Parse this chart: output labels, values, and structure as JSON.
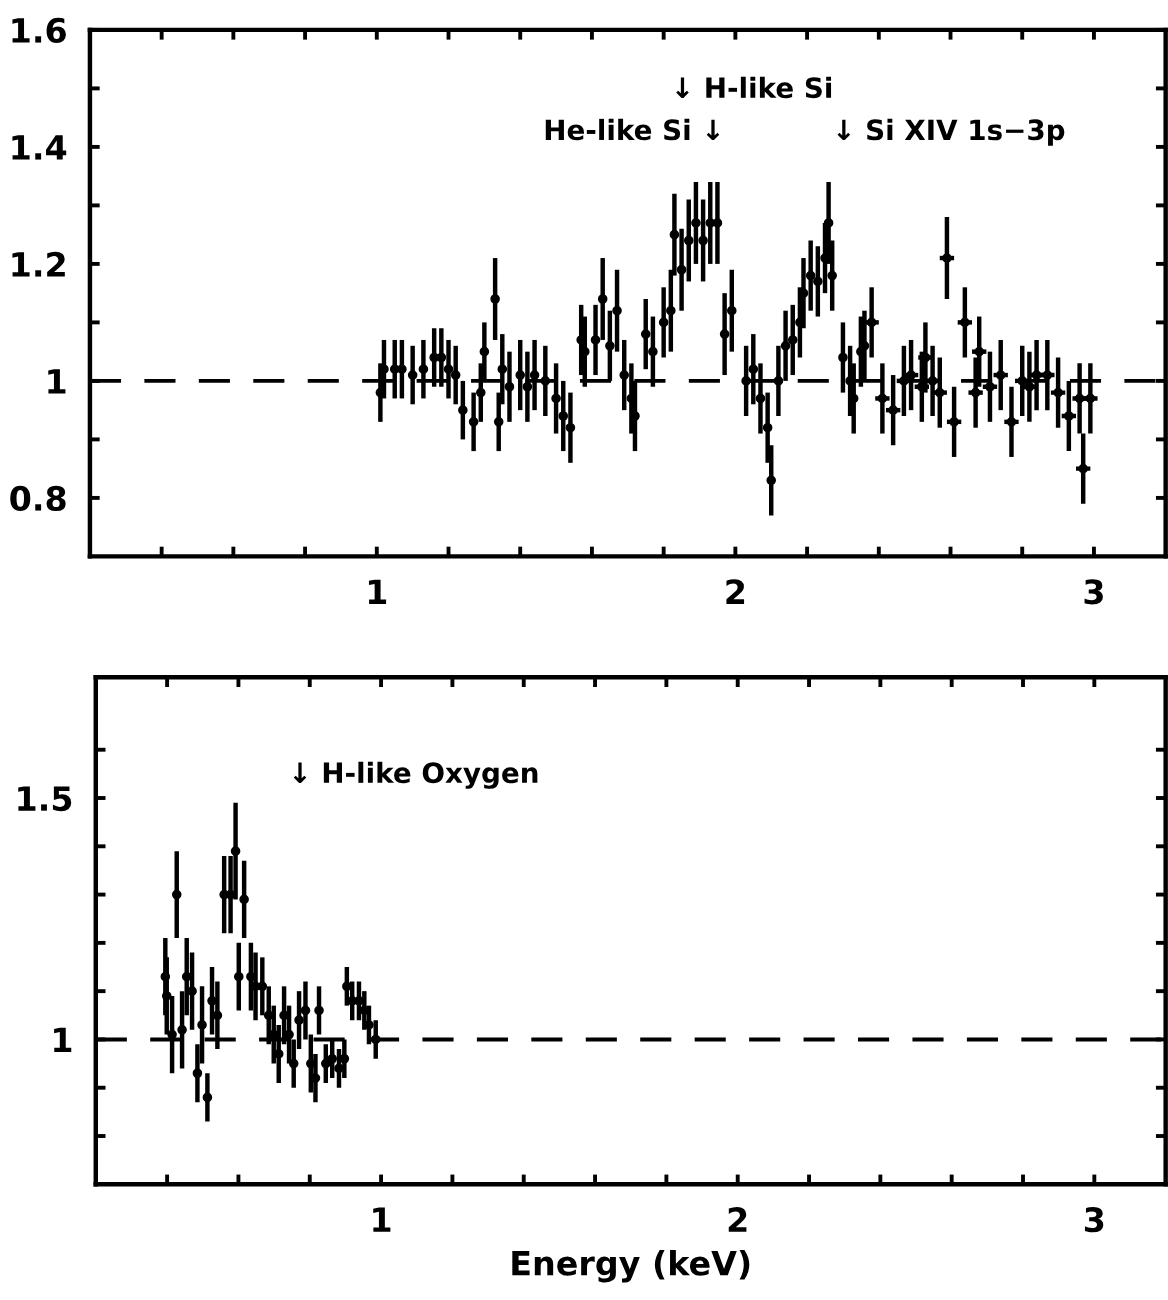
{
  "chart_data": [
    {
      "type": "scatter",
      "marker": "circle",
      "grid": false,
      "xlim": [
        0.2,
        3.2
      ],
      "ylim": [
        0.7,
        1.6
      ],
      "xticks": [
        {
          "value": 0.4,
          "label": null
        },
        {
          "value": 0.6,
          "label": null
        },
        {
          "value": 0.8,
          "label": null
        },
        1,
        {
          "value": 1.2,
          "label": null
        },
        {
          "value": 1.4,
          "label": null
        },
        {
          "value": 1.6,
          "label": null
        },
        {
          "value": 1.8,
          "label": null
        },
        2,
        {
          "value": 2.2,
          "label": null
        },
        {
          "value": 2.4,
          "label": null
        },
        {
          "value": 2.6,
          "label": null
        },
        {
          "value": 2.8,
          "label": null
        },
        3
      ],
      "yticks": [
        0.8,
        {
          "value": 0.9,
          "label": null
        },
        1,
        {
          "value": 1.1,
          "label": null
        },
        1.2,
        {
          "value": 1.3,
          "label": null
        },
        1.4,
        {
          "value": 1.5,
          "label": null
        },
        1.6
      ],
      "ref_lines": [
        {
          "axis": "y",
          "value": 1,
          "line_style": "dashed",
          "color": "#000000"
        }
      ],
      "annotations": [
        "He-like Si ↓",
        "↓ H-like Si",
        "↓ Si XIV 1s−3p"
      ],
      "series": [
        {
          "color": "#000000",
          "x": [
            1.01,
            1.02,
            1.05,
            1.07,
            1.1,
            1.13,
            1.16,
            1.18,
            1.2,
            1.22,
            1.24,
            1.27,
            1.29,
            1.3,
            1.33,
            1.34,
            1.35,
            1.37,
            1.4,
            1.42,
            1.44,
            1.47,
            1.5,
            1.52,
            1.54,
            1.57,
            1.58,
            1.61,
            1.63,
            1.65,
            1.67,
            1.69,
            1.71,
            1.72,
            1.75,
            1.77,
            1.8,
            1.82,
            1.83,
            1.85,
            1.87,
            1.89,
            1.91,
            1.93,
            1.95,
            1.97,
            1.99,
            2.03,
            2.05,
            2.07,
            2.09,
            2.1,
            2.12,
            2.14,
            2.16,
            2.18,
            2.19,
            2.21,
            2.23,
            2.25,
            2.26,
            2.27,
            2.3,
            2.32,
            2.33,
            2.35,
            2.36,
            2.38,
            2.41,
            2.44,
            2.47,
            2.49,
            2.52,
            2.53,
            2.55,
            2.57,
            2.59,
            2.61,
            2.64,
            2.67,
            2.68,
            2.71,
            2.74,
            2.77,
            2.8,
            2.82,
            2.84,
            2.87,
            2.9,
            2.93,
            2.96,
            2.97,
            2.99
          ],
          "values": [
            0.98,
            1.02,
            1.02,
            1.02,
            1.01,
            1.02,
            1.04,
            1.04,
            1.02,
            1.01,
            0.95,
            0.93,
            0.98,
            1.05,
            1.14,
            0.93,
            1.02,
            0.99,
            1.01,
            0.99,
            1.01,
            1.0,
            0.97,
            0.94,
            0.92,
            1.07,
            1.05,
            1.07,
            1.14,
            1.06,
            1.12,
            1.01,
            0.97,
            0.94,
            1.08,
            1.05,
            1.1,
            1.12,
            1.25,
            1.19,
            1.24,
            1.27,
            1.24,
            1.27,
            1.27,
            1.08,
            1.12,
            1.0,
            1.02,
            0.97,
            0.92,
            0.83,
            1.0,
            1.06,
            1.07,
            1.1,
            1.15,
            1.18,
            1.17,
            1.21,
            1.27,
            1.18,
            1.04,
            1.0,
            0.97,
            1.05,
            1.06,
            1.1,
            0.97,
            0.95,
            1.0,
            1.01,
            0.99,
            1.04,
            1.0,
            0.98,
            1.21,
            0.93,
            1.1,
            0.98,
            1.05,
            0.99,
            1.01,
            0.93,
            1.0,
            0.99,
            1.01,
            1.01,
            0.98,
            0.94,
            0.97,
            0.85,
            0.97
          ],
          "errors": [
            0.05,
            0.05,
            0.05,
            0.05,
            0.05,
            0.05,
            0.05,
            0.05,
            0.05,
            0.05,
            0.05,
            0.05,
            0.05,
            0.05,
            0.07,
            0.05,
            0.06,
            0.06,
            0.06,
            0.06,
            0.06,
            0.06,
            0.06,
            0.06,
            0.06,
            0.06,
            0.06,
            0.06,
            0.07,
            0.06,
            0.07,
            0.06,
            0.06,
            0.06,
            0.06,
            0.06,
            0.06,
            0.07,
            0.07,
            0.07,
            0.07,
            0.07,
            0.07,
            0.07,
            0.07,
            0.07,
            0.07,
            0.06,
            0.06,
            0.06,
            0.06,
            0.06,
            0.06,
            0.06,
            0.06,
            0.06,
            0.06,
            0.06,
            0.06,
            0.06,
            0.07,
            0.06,
            0.06,
            0.06,
            0.06,
            0.06,
            0.06,
            0.06,
            0.06,
            0.06,
            0.06,
            0.06,
            0.06,
            0.06,
            0.06,
            0.06,
            0.07,
            0.06,
            0.06,
            0.06,
            0.06,
            0.06,
            0.06,
            0.06,
            0.06,
            0.06,
            0.06,
            0.06,
            0.06,
            0.06,
            0.06,
            0.06,
            0.06
          ],
          "xerrors": [
            0.01,
            0.01,
            0.01,
            0.01,
            0.01,
            0.01,
            0.01,
            0.01,
            0.01,
            0.01,
            0.01,
            0.01,
            0.01,
            0.01,
            0.01,
            0.01,
            0.01,
            0.01,
            0.01,
            0.01,
            0.01,
            0.01,
            0.01,
            0.01,
            0.01,
            0.01,
            0.01,
            0.01,
            0.01,
            0.01,
            0.01,
            0.01,
            0.01,
            0.01,
            0.01,
            0.01,
            0.01,
            0.01,
            0.01,
            0.01,
            0.01,
            0.01,
            0.01,
            0.01,
            0.01,
            0.01,
            0.01,
            0.01,
            0.01,
            0.01,
            0.01,
            0.01,
            0.01,
            0.01,
            0.01,
            0.01,
            0.01,
            0.01,
            0.01,
            0.01,
            0.01,
            0.01,
            0.01,
            0.01,
            0.01,
            0.01,
            0.01,
            0.02,
            0.02,
            0.02,
            0.02,
            0.02,
            0.02,
            0.02,
            0.02,
            0.02,
            0.02,
            0.02,
            0.02,
            0.02,
            0.02,
            0.02,
            0.02,
            0.02,
            0.02,
            0.02,
            0.02,
            0.02,
            0.02,
            0.02,
            0.02,
            0.02,
            0.02
          ]
        }
      ]
    },
    {
      "type": "scatter",
      "marker": "circle",
      "grid": false,
      "xlabel": "Energy (keV)",
      "xlim": [
        0.2,
        3.2
      ],
      "ylim": [
        0.7,
        1.75
      ],
      "xticks": [
        {
          "value": 0.4,
          "label": null
        },
        {
          "value": 0.6,
          "label": null
        },
        {
          "value": 0.8,
          "label": null
        },
        1,
        {
          "value": 1.2,
          "label": null
        },
        {
          "value": 1.4,
          "label": null
        },
        {
          "value": 1.6,
          "label": null
        },
        {
          "value": 1.8,
          "label": null
        },
        2,
        {
          "value": 2.2,
          "label": null
        },
        {
          "value": 2.4,
          "label": null
        },
        {
          "value": 2.6,
          "label": null
        },
        {
          "value": 2.8,
          "label": null
        },
        3
      ],
      "yticks": [
        {
          "value": 0.8,
          "label": null
        },
        {
          "value": 0.9,
          "label": null
        },
        1,
        {
          "value": 1.1,
          "label": null
        },
        {
          "value": 1.2,
          "label": null
        },
        {
          "value": 1.3,
          "label": null
        },
        {
          "value": 1.4,
          "label": null
        },
        1.5,
        {
          "value": 1.6,
          "label": null
        }
      ],
      "ref_lines": [
        {
          "axis": "y",
          "value": 1,
          "line_style": "dashed",
          "color": "#000000"
        }
      ],
      "annotations": [
        "↓ H-like Oxygen"
      ],
      "series": [
        {
          "color": "#000000",
          "x": [
            0.395,
            0.399,
            0.414,
            0.427,
            0.442,
            0.455,
            0.47,
            0.485,
            0.498,
            0.513,
            0.526,
            0.541,
            0.56,
            0.578,
            0.592,
            0.601,
            0.616,
            0.635,
            0.648,
            0.667,
            0.685,
            0.699,
            0.713,
            0.728,
            0.742,
            0.755,
            0.77,
            0.788,
            0.803,
            0.816,
            0.826,
            0.845,
            0.863,
            0.882,
            0.897,
            0.904,
            0.919,
            0.938,
            0.953,
            0.966,
            0.985
          ],
          "values": [
            1.13,
            1.09,
            1.01,
            1.3,
            1.02,
            1.13,
            1.1,
            0.93,
            1.03,
            0.88,
            1.08,
            1.05,
            1.3,
            1.3,
            1.39,
            1.13,
            1.29,
            1.13,
            1.11,
            1.11,
            1.05,
            1.01,
            0.97,
            1.05,
            1.01,
            0.95,
            1.04,
            1.06,
            0.95,
            0.92,
            1.06,
            0.95,
            0.96,
            0.94,
            0.96,
            1.11,
            1.08,
            1.08,
            1.06,
            1.03,
            1.0
          ],
          "errors": [
            0.08,
            0.08,
            0.08,
            0.09,
            0.08,
            0.08,
            0.08,
            0.06,
            0.08,
            0.05,
            0.07,
            0.07,
            0.08,
            0.08,
            0.1,
            0.07,
            0.08,
            0.07,
            0.07,
            0.06,
            0.06,
            0.06,
            0.06,
            0.06,
            0.06,
            0.05,
            0.06,
            0.06,
            0.06,
            0.05,
            0.05,
            0.04,
            0.04,
            0.04,
            0.04,
            0.04,
            0.04,
            0.04,
            0.04,
            0.04,
            0.04
          ],
          "xerrors": [
            0.01,
            0.01,
            0.01,
            0.01,
            0.01,
            0.01,
            0.01,
            0.01,
            0.01,
            0.01,
            0.01,
            0.01,
            0.01,
            0.01,
            0.01,
            0.01,
            0.01,
            0.01,
            0.01,
            0.01,
            0.01,
            0.01,
            0.01,
            0.01,
            0.01,
            0.01,
            0.01,
            0.01,
            0.01,
            0.01,
            0.01,
            0.01,
            0.01,
            0.01,
            0.01,
            0.01,
            0.01,
            0.01,
            0.01,
            0.01,
            0.01
          ]
        }
      ]
    }
  ]
}
